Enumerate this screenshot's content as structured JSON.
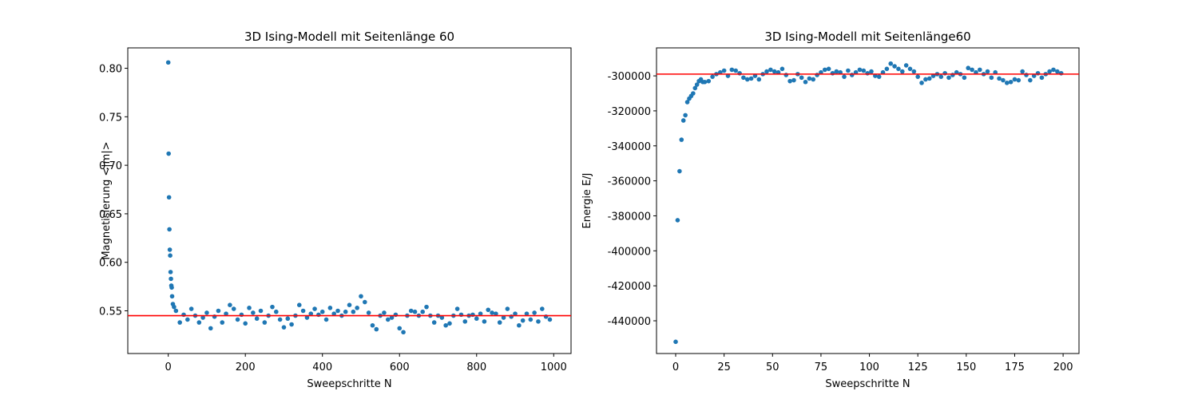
{
  "chart_data": [
    {
      "type": "scatter",
      "title": "3D Ising-Modell mit Seitenlänge 60",
      "xlabel": "Sweepschritte N",
      "ylabel": "Magnetisierung <|m|>",
      "color": "#1f77b4",
      "hline": {
        "value": 0.545,
        "color": "#ff0000"
      },
      "xlim": [
        -105,
        1045
      ],
      "ylim": [
        0.506,
        0.821
      ],
      "xticks": [
        0,
        200,
        400,
        600,
        800,
        1000
      ],
      "yticks": [
        {
          "value": 0.55,
          "label": "0.55"
        },
        {
          "value": 0.6,
          "label": "0.60"
        },
        {
          "value": 0.65,
          "label": "0.65"
        },
        {
          "value": 0.7,
          "label": "0.70"
        },
        {
          "value": 0.75,
          "label": "0.75"
        },
        {
          "value": 0.8,
          "label": "0.80"
        }
      ],
      "x": [
        0,
        1,
        2,
        3,
        4,
        5,
        6,
        7,
        8,
        9,
        10,
        12,
        15,
        20,
        30,
        40,
        50,
        60,
        70,
        80,
        90,
        100,
        110,
        120,
        130,
        140,
        150,
        160,
        170,
        180,
        190,
        200,
        210,
        220,
        230,
        240,
        250,
        260,
        270,
        280,
        290,
        300,
        310,
        320,
        330,
        340,
        350,
        360,
        370,
        380,
        390,
        400,
        410,
        420,
        430,
        440,
        450,
        460,
        470,
        480,
        490,
        500,
        510,
        520,
        530,
        540,
        550,
        560,
        570,
        580,
        590,
        600,
        610,
        620,
        630,
        640,
        650,
        660,
        670,
        680,
        690,
        700,
        710,
        720,
        730,
        740,
        750,
        760,
        770,
        780,
        790,
        800,
        810,
        820,
        830,
        840,
        850,
        860,
        870,
        880,
        890,
        900,
        910,
        920,
        930,
        940,
        950,
        960,
        970,
        980,
        990
      ],
      "values": [
        0.806,
        0.712,
        0.667,
        0.634,
        0.613,
        0.607,
        0.59,
        0.583,
        0.576,
        0.574,
        0.565,
        0.557,
        0.554,
        0.55,
        0.538,
        0.546,
        0.541,
        0.552,
        0.545,
        0.538,
        0.543,
        0.548,
        0.532,
        0.544,
        0.55,
        0.538,
        0.547,
        0.556,
        0.552,
        0.541,
        0.546,
        0.537,
        0.553,
        0.548,
        0.542,
        0.55,
        0.538,
        0.545,
        0.554,
        0.549,
        0.541,
        0.533,
        0.542,
        0.536,
        0.545,
        0.556,
        0.55,
        0.543,
        0.547,
        0.552,
        0.546,
        0.549,
        0.541,
        0.553,
        0.547,
        0.55,
        0.545,
        0.549,
        0.556,
        0.549,
        0.553,
        0.565,
        0.559,
        0.548,
        0.535,
        0.531,
        0.545,
        0.548,
        0.541,
        0.543,
        0.546,
        0.532,
        0.528,
        0.545,
        0.55,
        0.549,
        0.545,
        0.549,
        0.554,
        0.545,
        0.538,
        0.545,
        0.543,
        0.535,
        0.537,
        0.545,
        0.552,
        0.546,
        0.539,
        0.545,
        0.546,
        0.542,
        0.547,
        0.539,
        0.551,
        0.548,
        0.547,
        0.538,
        0.543,
        0.552,
        0.544,
        0.547,
        0.535,
        0.54,
        0.547,
        0.541,
        0.548,
        0.539,
        0.552,
        0.544,
        0.541
      ]
    },
    {
      "type": "scatter",
      "title": "3D Ising-Modell mit Seitenlänge60",
      "xlabel": "Sweepschritte N",
      "ylabel": "Energie E/J",
      "color": "#1f77b4",
      "hline": {
        "value": -299000,
        "color": "#ff0000"
      },
      "xlim": [
        -9.9,
        208.2
      ],
      "ylim": [
        -458700,
        -284000
      ],
      "xticks": [
        0,
        25,
        50,
        75,
        100,
        125,
        150,
        175,
        200
      ],
      "yticks": [
        -440000,
        -420000,
        -400000,
        -380000,
        -360000,
        -340000,
        -320000,
        -300000
      ],
      "x": [
        0,
        1,
        2,
        3,
        4,
        5,
        6,
        7,
        8,
        9,
        10,
        11,
        12,
        13,
        14,
        15,
        17,
        19,
        21,
        23,
        25,
        27,
        29,
        31,
        33,
        35,
        37,
        39,
        41,
        43,
        45,
        47,
        49,
        51,
        53,
        55,
        57,
        59,
        61,
        63,
        65,
        67,
        69,
        71,
        73,
        75,
        77,
        79,
        81,
        83,
        85,
        87,
        89,
        91,
        93,
        95,
        97,
        99,
        101,
        103,
        105,
        107,
        109,
        111,
        113,
        115,
        117,
        119,
        121,
        123,
        125,
        127,
        129,
        131,
        133,
        135,
        137,
        139,
        141,
        143,
        145,
        147,
        149,
        151,
        153,
        155,
        157,
        159,
        161,
        163,
        165,
        167,
        169,
        171,
        173,
        175,
        177,
        179,
        181,
        183,
        185,
        187,
        189,
        191,
        193,
        195,
        197,
        199
      ],
      "values": [
        -452000,
        -382500,
        -354500,
        -336500,
        -325500,
        -322500,
        -315000,
        -313000,
        -311500,
        -310000,
        -307000,
        -305000,
        -303000,
        -302000,
        -303500,
        -303500,
        -303000,
        -300500,
        -299000,
        -298000,
        -297000,
        -300000,
        -296500,
        -297000,
        -298500,
        -301000,
        -302000,
        -301500,
        -300000,
        -302000,
        -299000,
        -297500,
        -296500,
        -297500,
        -298000,
        -296000,
        -299500,
        -303000,
        -302500,
        -299000,
        -301000,
        -303500,
        -301500,
        -302000,
        -299500,
        -298000,
        -296500,
        -296000,
        -298500,
        -297500,
        -298000,
        -300500,
        -297000,
        -299500,
        -298000,
        -296500,
        -297000,
        -298500,
        -297500,
        -300000,
        -300500,
        -298000,
        -296000,
        -293000,
        -294500,
        -296000,
        -297500,
        -294000,
        -296000,
        -297500,
        -300500,
        -304000,
        -302000,
        -301500,
        -300000,
        -299000,
        -300500,
        -298500,
        -301000,
        -299500,
        -298000,
        -299000,
        -301000,
        -295500,
        -296500,
        -298000,
        -296500,
        -299000,
        -297500,
        -301000,
        -298000,
        -301500,
        -302500,
        -304000,
        -303500,
        -302000,
        -302500,
        -297500,
        -299500,
        -302500,
        -300000,
        -298500,
        -301000,
        -299000,
        -297500,
        -296500,
        -297500,
        -298500
      ]
    }
  ]
}
